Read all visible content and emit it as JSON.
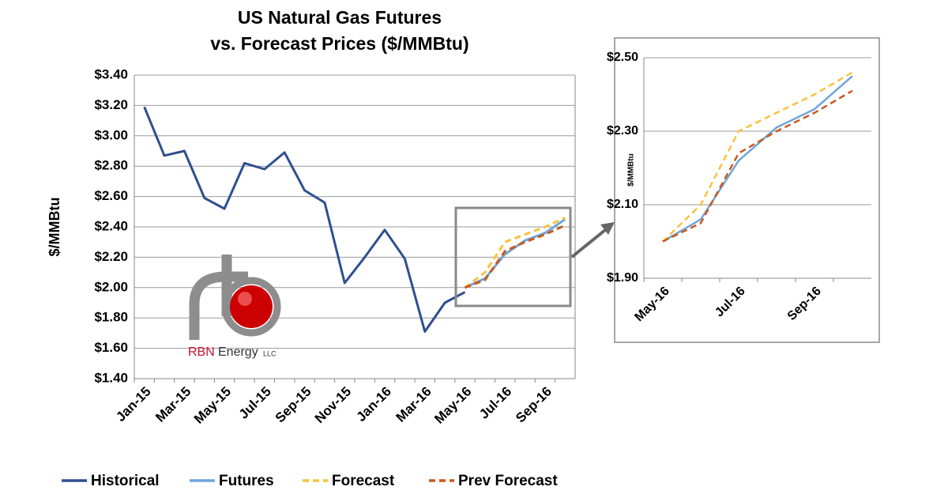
{
  "chart_data": [
    {
      "type": "line",
      "title": [
        "US Natural Gas Futures",
        "vs. Forecast Prices ($/MMBtu)"
      ],
      "y_label": "$/MMBtu",
      "categories": [
        "Jan-15",
        null,
        "Mar-15",
        null,
        "May-15",
        null,
        "Jul-15",
        null,
        "Sep-15",
        null,
        "Nov-15",
        null,
        "Jan-16",
        null,
        "Mar-16",
        null,
        "May-16",
        null,
        "Jul-16",
        null,
        "Sep-16",
        null
      ],
      "series": [
        {
          "name": "Historical",
          "color": "#2f4f8f",
          "dashed": false,
          "values": [
            3.19,
            2.87,
            2.9,
            2.59,
            2.52,
            2.82,
            2.78,
            2.89,
            2.64,
            2.56,
            2.03,
            2.2,
            2.38,
            2.19,
            1.71,
            1.9,
            1.97,
            null,
            null,
            null,
            null,
            null
          ]
        },
        {
          "name": "Futures",
          "color": "#6fa5d8",
          "dashed": false,
          "values": [
            null,
            null,
            null,
            null,
            null,
            null,
            null,
            null,
            null,
            null,
            null,
            null,
            null,
            null,
            null,
            null,
            2.0,
            2.06,
            2.22,
            2.31,
            2.36,
            2.45
          ]
        },
        {
          "name": "Forecast",
          "color": "#f6c33c",
          "dashed": true,
          "values": [
            null,
            null,
            null,
            null,
            null,
            null,
            null,
            null,
            null,
            null,
            null,
            null,
            null,
            null,
            null,
            null,
            2.0,
            2.1,
            2.3,
            2.35,
            2.4,
            2.46
          ]
        },
        {
          "name": "Prev Forecast",
          "color": "#c9581d",
          "dashed": true,
          "values": [
            null,
            null,
            null,
            null,
            null,
            null,
            null,
            null,
            null,
            null,
            null,
            null,
            null,
            null,
            null,
            null,
            2.0,
            2.05,
            2.24,
            2.3,
            2.35,
            2.41
          ]
        }
      ],
      "ylim": [
        1.4,
        3.4
      ],
      "yticks": [
        {
          "value": 1.4,
          "label": "$1.40"
        },
        {
          "value": 1.6,
          "label": "$1.60"
        },
        {
          "value": 1.8,
          "label": "$1.80"
        },
        {
          "value": 2.0,
          "label": "$2.00"
        },
        {
          "value": 2.2,
          "label": "$2.20"
        },
        {
          "value": 2.4,
          "label": "$2.40"
        },
        {
          "value": 2.6,
          "label": "$2.60"
        },
        {
          "value": 2.8,
          "label": "$2.80"
        },
        {
          "value": 3.0,
          "label": "$3.00"
        },
        {
          "value": 3.2,
          "label": "$3.20"
        },
        {
          "value": 3.4,
          "label": "$3.40"
        }
      ],
      "grid": true,
      "legend": "bottom",
      "logo": {
        "name": "RBN",
        "word": "Energy",
        "suffix": "LLC"
      }
    },
    {
      "type": "line",
      "y_label": "$/MMBtu",
      "categories": [
        "May-16",
        null,
        "Jul-16",
        null,
        "Sep-16",
        null
      ],
      "series": [
        {
          "color": "#6fa5d8",
          "dashed": false,
          "values": [
            2.0,
            2.06,
            2.22,
            2.31,
            2.36,
            2.45
          ]
        },
        {
          "color": "#f6c33c",
          "dashed": true,
          "values": [
            2.0,
            2.1,
            2.3,
            2.35,
            2.4,
            2.46
          ]
        },
        {
          "color": "#c9581d",
          "dashed": true,
          "values": [
            2.0,
            2.05,
            2.24,
            2.3,
            2.35,
            2.41
          ]
        }
      ],
      "ylim": [
        1.9,
        2.5
      ],
      "yticks": [
        {
          "value": 1.9,
          "label": "$1.90"
        },
        {
          "value": 2.1,
          "label": "$2.10"
        },
        {
          "value": 2.3,
          "label": "$2.30"
        },
        {
          "value": 2.5,
          "label": "$2.50"
        }
      ],
      "grid": true
    }
  ]
}
